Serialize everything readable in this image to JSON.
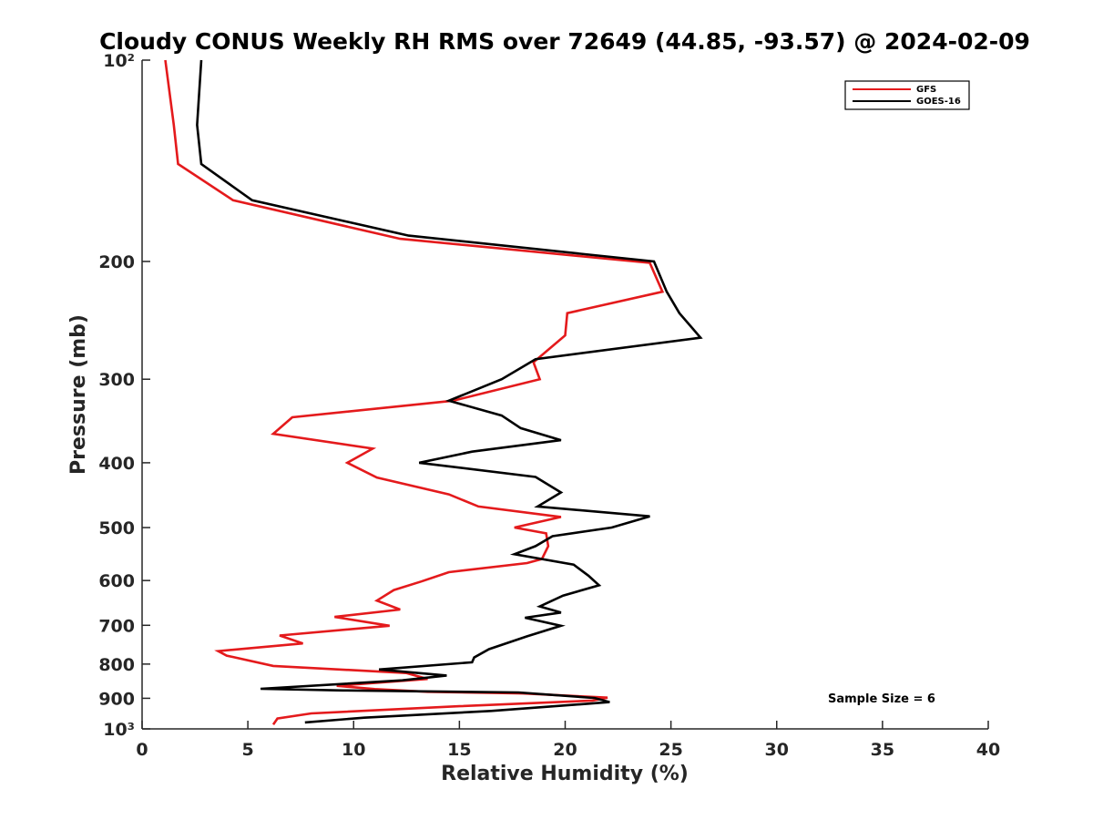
{
  "chart_data": {
    "type": "line",
    "title": "Cloudy CONUS Weekly RH RMS over 72649 (44.85, -93.57) @ 2024-02-09",
    "xlabel": "Relative Humidity (%)",
    "ylabel": "Pressure (mb)",
    "xlim": [
      0,
      40
    ],
    "ylim": [
      100,
      1000
    ],
    "y_scale": "log",
    "y_reversed": true,
    "x_ticks": [
      0,
      5,
      10,
      15,
      20,
      25,
      30,
      35,
      40
    ],
    "x_tick_labels": [
      "0",
      "5",
      "10",
      "15",
      "20",
      "25",
      "30",
      "35",
      "40"
    ],
    "y_ticks": [
      100,
      200,
      300,
      400,
      500,
      600,
      700,
      800,
      900,
      1000
    ],
    "y_tick_labels": [
      "10²",
      "200",
      "300",
      "400",
      "500",
      "600",
      "700",
      "800",
      "900",
      "10³"
    ],
    "grid": false,
    "legend_position": "top-right",
    "annotation": "Sample Size = 6",
    "series": [
      {
        "name": "GFS",
        "color": "#e41a1c",
        "points": [
          [
            1.1,
            100
          ],
          [
            1.5,
            125
          ],
          [
            1.7,
            143
          ],
          [
            4.3,
            162
          ],
          [
            12.2,
            185
          ],
          [
            24.0,
            201
          ],
          [
            24.6,
            222
          ],
          [
            20.1,
            239
          ],
          [
            20.0,
            258
          ],
          [
            18.5,
            283
          ],
          [
            18.8,
            300
          ],
          [
            14.7,
            323
          ],
          [
            7.1,
            342
          ],
          [
            6.2,
            362
          ],
          [
            10.9,
            381
          ],
          [
            9.7,
            400
          ],
          [
            11.1,
            421
          ],
          [
            14.5,
            446
          ],
          [
            15.9,
            465
          ],
          [
            19.8,
            482
          ],
          [
            17.6,
            500
          ],
          [
            19.1,
            510
          ],
          [
            19.2,
            533
          ],
          [
            18.9,
            557
          ],
          [
            18.2,
            565
          ],
          [
            14.5,
            583
          ],
          [
            13.2,
            602
          ],
          [
            11.9,
            620
          ],
          [
            11.1,
            643
          ],
          [
            12.2,
            663
          ],
          [
            9.1,
            680
          ],
          [
            11.7,
            701
          ],
          [
            6.5,
            725
          ],
          [
            7.6,
            745
          ],
          [
            3.6,
            765
          ],
          [
            4.0,
            777
          ],
          [
            6.2,
            805
          ],
          [
            12.5,
            825
          ],
          [
            13.5,
            842
          ],
          [
            9.2,
            862
          ],
          [
            11.0,
            872
          ],
          [
            13.5,
            880
          ],
          [
            18.0,
            885
          ],
          [
            22.0,
            898
          ],
          [
            21.3,
            907
          ],
          [
            15.0,
            925
          ],
          [
            8.0,
            948
          ],
          [
            6.4,
            965
          ],
          [
            6.2,
            985
          ]
        ]
      },
      {
        "name": "GOES-16",
        "color": "#000000",
        "points": [
          [
            2.8,
            100
          ],
          [
            2.6,
            125
          ],
          [
            2.8,
            143
          ],
          [
            5.2,
            162
          ],
          [
            12.6,
            183
          ],
          [
            24.2,
            200
          ],
          [
            24.8,
            222
          ],
          [
            25.4,
            239
          ],
          [
            26.4,
            260
          ],
          [
            18.6,
            280
          ],
          [
            17.0,
            300
          ],
          [
            14.5,
            323
          ],
          [
            17.0,
            340
          ],
          [
            17.9,
            355
          ],
          [
            19.8,
            370
          ],
          [
            15.6,
            385
          ],
          [
            13.1,
            400
          ],
          [
            18.6,
            420
          ],
          [
            19.8,
            443
          ],
          [
            18.7,
            465
          ],
          [
            24.0,
            481
          ],
          [
            22.2,
            500
          ],
          [
            19.4,
            515
          ],
          [
            18.6,
            533
          ],
          [
            17.6,
            548
          ],
          [
            20.4,
            568
          ],
          [
            21.1,
            590
          ],
          [
            21.6,
            610
          ],
          [
            19.9,
            632
          ],
          [
            18.8,
            656
          ],
          [
            19.8,
            670
          ],
          [
            18.1,
            682
          ],
          [
            19.8,
            701
          ],
          [
            18.2,
            727
          ],
          [
            16.4,
            760
          ],
          [
            15.7,
            782
          ],
          [
            15.6,
            795
          ],
          [
            11.2,
            815
          ],
          [
            14.4,
            832
          ],
          [
            12.3,
            846
          ],
          [
            5.6,
            871
          ],
          [
            9.5,
            876
          ],
          [
            17.8,
            882
          ],
          [
            21.4,
            899
          ],
          [
            22.1,
            912
          ],
          [
            16.5,
            940
          ],
          [
            10.5,
            962
          ],
          [
            7.7,
            978
          ]
        ]
      }
    ]
  }
}
